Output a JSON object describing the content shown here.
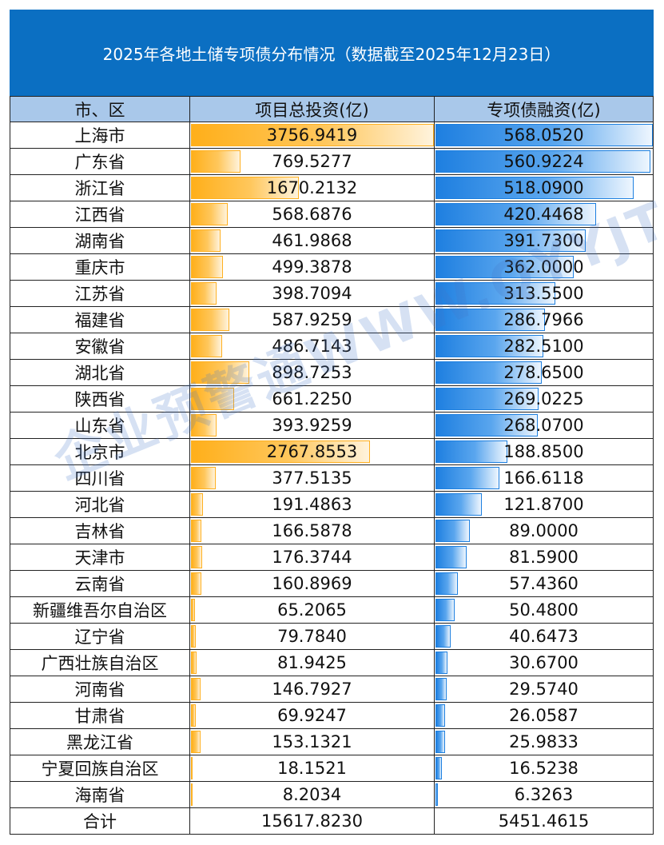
{
  "title": "2025年各地土储专项债分布情况（数据截至2025年12月23日）",
  "headers": {
    "region": "市、区",
    "investment": "项目总投资(亿)",
    "financing": "专项债融资(亿)"
  },
  "watermark": "企业预警通WWW.QYYJT.CN",
  "colors": {
    "title_bg": "#0b6fc2",
    "header_bg": "#a9c8ea",
    "investment_bar": "#ffaf1a",
    "financing_bar": "#1e7fe0"
  },
  "rows": [
    {
      "region": "上海市",
      "investment": "3756.9419",
      "financing": "568.0520"
    },
    {
      "region": "广东省",
      "investment": "769.5277",
      "financing": "560.9224"
    },
    {
      "region": "浙江省",
      "investment": "1670.2132",
      "financing": "518.0900"
    },
    {
      "region": "江西省",
      "investment": "568.6876",
      "financing": "420.4468"
    },
    {
      "region": "湖南省",
      "investment": "461.9868",
      "financing": "391.7300"
    },
    {
      "region": "重庆市",
      "investment": "499.3878",
      "financing": "362.0000"
    },
    {
      "region": "江苏省",
      "investment": "398.7094",
      "financing": "313.5500"
    },
    {
      "region": "福建省",
      "investment": "587.9259",
      "financing": "286.7966"
    },
    {
      "region": "安徽省",
      "investment": "486.7143",
      "financing": "282.5100"
    },
    {
      "region": "湖北省",
      "investment": "898.7253",
      "financing": "278.6500"
    },
    {
      "region": "陕西省",
      "investment": "661.2250",
      "financing": "269.0225"
    },
    {
      "region": "山东省",
      "investment": "393.9259",
      "financing": "268.0700"
    },
    {
      "region": "北京市",
      "investment": "2767.8553",
      "financing": "188.8500"
    },
    {
      "region": "四川省",
      "investment": "377.5135",
      "financing": "166.6118"
    },
    {
      "region": "河北省",
      "investment": "191.4863",
      "financing": "121.8700"
    },
    {
      "region": "吉林省",
      "investment": "166.5878",
      "financing": "89.0000"
    },
    {
      "region": "天津市",
      "investment": "176.3744",
      "financing": "81.5900"
    },
    {
      "region": "云南省",
      "investment": "160.8969",
      "financing": "57.4360"
    },
    {
      "region": "新疆维吾尔自治区",
      "investment": "65.2065",
      "financing": "50.4800"
    },
    {
      "region": "辽宁省",
      "investment": "79.7840",
      "financing": "40.6473"
    },
    {
      "region": "广西壮族自治区",
      "investment": "81.9425",
      "financing": "30.6700"
    },
    {
      "region": "河南省",
      "investment": "146.7927",
      "financing": "29.5740"
    },
    {
      "region": "甘肃省",
      "investment": "69.9247",
      "financing": "26.0587"
    },
    {
      "region": "黑龙江省",
      "investment": "153.1321",
      "financing": "25.9833"
    },
    {
      "region": "宁夏回族自治区",
      "investment": "18.1521",
      "financing": "16.5238"
    },
    {
      "region": "海南省",
      "investment": "8.2034",
      "financing": "6.3263"
    }
  ],
  "total": {
    "label": "合计",
    "investment": "15617.8230",
    "financing": "5451.4615"
  }
}
